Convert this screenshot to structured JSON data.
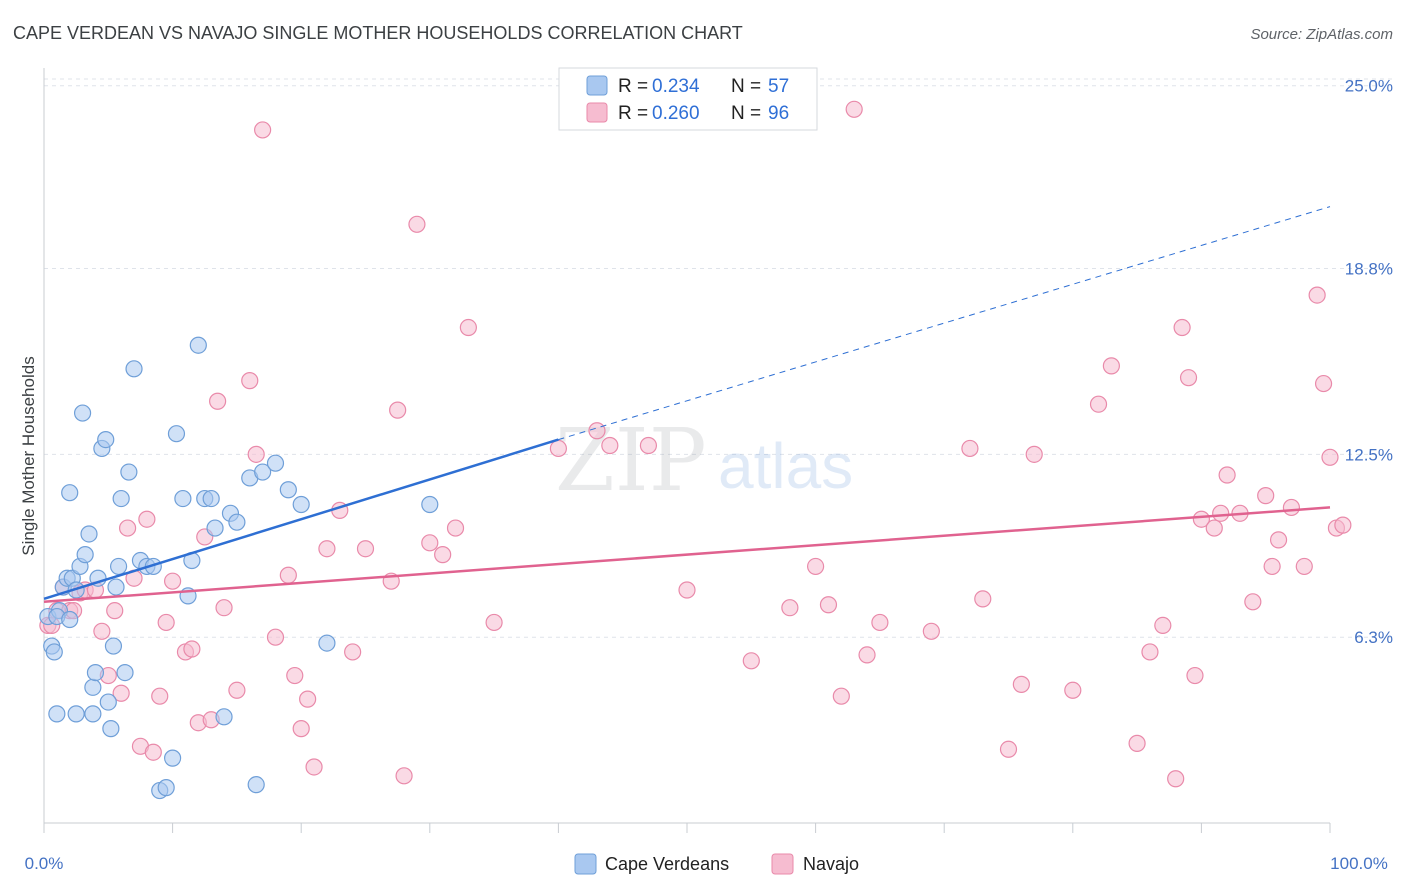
{
  "chart_data": {
    "type": "scatter",
    "title": "CAPE VERDEAN VS NAVAJO SINGLE MOTHER HOUSEHOLDS CORRELATION CHART",
    "source": "Source: ZipAtlas.com",
    "ylabel": "Single Mother Households",
    "xlabel": "",
    "xlim": [
      0,
      100
    ],
    "ylim": [
      0,
      25.6
    ],
    "x_tick_labels": {
      "left": "0.0%",
      "right": "100.0%"
    },
    "y_ticks": [
      {
        "value": 6.3,
        "label": "6.3%"
      },
      {
        "value": 12.5,
        "label": "12.5%"
      },
      {
        "value": 18.8,
        "label": "18.8%"
      },
      {
        "value": 25.0,
        "label": "25.0%"
      }
    ],
    "watermark": {
      "zip": "ZIP",
      "atlas": "atlas"
    },
    "legend": [
      {
        "name": "Cape Verdeans",
        "r_label": "R =",
        "r": "0.234",
        "n_label": "N =",
        "n": "57"
      },
      {
        "name": "Navajo",
        "r_label": "R =",
        "r": "0.260",
        "n_label": "N =",
        "n": "96"
      }
    ],
    "colors": {
      "cape_fill": "#a9c8f0",
      "cape_stroke": "#6f9fd8",
      "cape_line": "#2e6fd3",
      "navajo_fill": "#f6bcd0",
      "navajo_stroke": "#e98aaa",
      "navajo_line": "#e0628f",
      "grid": "#dfe3ea",
      "axis": "#c8ccd2"
    },
    "series": [
      {
        "name": "Cape Verdeans",
        "trend": {
          "x0": 0,
          "y0": 7.6,
          "x1": 40,
          "y1": 13.0,
          "dash_x1": 100,
          "dash_y1": 20.9
        },
        "points": [
          [
            0.3,
            7.0
          ],
          [
            0.6,
            6.0
          ],
          [
            0.8,
            5.8
          ],
          [
            1.2,
            7.2
          ],
          [
            1.0,
            7.0
          ],
          [
            1.5,
            8.0
          ],
          [
            1.8,
            8.3
          ],
          [
            2.0,
            11.2
          ],
          [
            2.2,
            8.3
          ],
          [
            2.5,
            7.9
          ],
          [
            2.0,
            6.9
          ],
          [
            2.8,
            8.7
          ],
          [
            3.0,
            13.9
          ],
          [
            3.2,
            9.1
          ],
          [
            3.5,
            9.8
          ],
          [
            3.8,
            4.6
          ],
          [
            4.0,
            5.1
          ],
          [
            3.8,
            3.7
          ],
          [
            1.0,
            3.7
          ],
          [
            2.5,
            3.7
          ],
          [
            4.2,
            8.3
          ],
          [
            4.5,
            12.7
          ],
          [
            4.8,
            13.0
          ],
          [
            5.0,
            4.1
          ],
          [
            5.2,
            3.2
          ],
          [
            5.4,
            6.0
          ],
          [
            5.6,
            8.0
          ],
          [
            5.8,
            8.7
          ],
          [
            6.0,
            11.0
          ],
          [
            6.3,
            5.1
          ],
          [
            6.6,
            11.9
          ],
          [
            7.0,
            15.4
          ],
          [
            7.5,
            8.9
          ],
          [
            8.0,
            8.7
          ],
          [
            8.5,
            8.7
          ],
          [
            9.0,
            1.1
          ],
          [
            9.5,
            1.2
          ],
          [
            10.0,
            2.2
          ],
          [
            10.3,
            13.2
          ],
          [
            10.8,
            11.0
          ],
          [
            11.2,
            7.7
          ],
          [
            11.5,
            8.9
          ],
          [
            12.0,
            16.2
          ],
          [
            12.5,
            11.0
          ],
          [
            13.0,
            11.0
          ],
          [
            13.3,
            10.0
          ],
          [
            14.0,
            3.6
          ],
          [
            14.5,
            10.5
          ],
          [
            15.0,
            10.2
          ],
          [
            16.0,
            11.7
          ],
          [
            16.5,
            1.3
          ],
          [
            17.0,
            11.9
          ],
          [
            18.0,
            12.2
          ],
          [
            19.0,
            11.3
          ],
          [
            20.0,
            10.8
          ],
          [
            22.0,
            6.1
          ],
          [
            30.0,
            10.8
          ]
        ]
      },
      {
        "name": "Navajo",
        "trend": {
          "x0": 0,
          "y0": 7.5,
          "x1": 100,
          "y1": 10.7
        },
        "points": [
          [
            0.3,
            6.7
          ],
          [
            0.6,
            6.7
          ],
          [
            1.0,
            7.2
          ],
          [
            1.5,
            8.0
          ],
          [
            2.0,
            7.2
          ],
          [
            2.3,
            7.2
          ],
          [
            2.8,
            7.8
          ],
          [
            3.2,
            7.9
          ],
          [
            4.0,
            7.9
          ],
          [
            4.5,
            6.5
          ],
          [
            5.0,
            5.0
          ],
          [
            5.5,
            7.2
          ],
          [
            6.0,
            4.4
          ],
          [
            6.5,
            10.0
          ],
          [
            7.0,
            8.3
          ],
          [
            7.5,
            2.6
          ],
          [
            8.0,
            10.3
          ],
          [
            8.5,
            2.4
          ],
          [
            9.0,
            4.3
          ],
          [
            9.5,
            6.8
          ],
          [
            10.0,
            8.2
          ],
          [
            11.0,
            5.8
          ],
          [
            11.5,
            5.9
          ],
          [
            12.0,
            3.4
          ],
          [
            12.5,
            9.7
          ],
          [
            13.0,
            3.5
          ],
          [
            13.5,
            14.3
          ],
          [
            14.0,
            7.3
          ],
          [
            15.0,
            4.5
          ],
          [
            16.0,
            15.0
          ],
          [
            16.5,
            12.5
          ],
          [
            17.0,
            23.5
          ],
          [
            18.0,
            6.3
          ],
          [
            19.0,
            8.4
          ],
          [
            19.5,
            5.0
          ],
          [
            20.0,
            3.2
          ],
          [
            20.5,
            4.2
          ],
          [
            21.0,
            1.9
          ],
          [
            22.0,
            9.3
          ],
          [
            23.0,
            10.6
          ],
          [
            24.0,
            5.8
          ],
          [
            25.0,
            9.3
          ],
          [
            27.0,
            8.2
          ],
          [
            27.5,
            14.0
          ],
          [
            28.0,
            1.6
          ],
          [
            29.0,
            20.3
          ],
          [
            30.0,
            9.5
          ],
          [
            31.0,
            9.1
          ],
          [
            32.0,
            10.0
          ],
          [
            33.0,
            16.8
          ],
          [
            35.0,
            6.8
          ],
          [
            40.0,
            12.7
          ],
          [
            43.0,
            13.3
          ],
          [
            44.0,
            12.8
          ],
          [
            47.0,
            12.8
          ],
          [
            50.0,
            7.9
          ],
          [
            55.0,
            5.5
          ],
          [
            58.0,
            7.3
          ],
          [
            60.0,
            8.7
          ],
          [
            61.0,
            7.4
          ],
          [
            62.0,
            4.3
          ],
          [
            63.0,
            24.2
          ],
          [
            64.0,
            5.7
          ],
          [
            65.0,
            6.8
          ],
          [
            69.0,
            6.5
          ],
          [
            72.0,
            12.7
          ],
          [
            73.0,
            7.6
          ],
          [
            75.0,
            2.5
          ],
          [
            76.0,
            4.7
          ],
          [
            77.0,
            12.5
          ],
          [
            80.0,
            4.5
          ],
          [
            82.0,
            14.2
          ],
          [
            83.0,
            15.5
          ],
          [
            85.0,
            2.7
          ],
          [
            86.0,
            5.8
          ],
          [
            87.0,
            6.7
          ],
          [
            88.0,
            1.5
          ],
          [
            88.5,
            16.8
          ],
          [
            89.0,
            15.1
          ],
          [
            89.5,
            5.0
          ],
          [
            90.0,
            10.3
          ],
          [
            91.0,
            10.0
          ],
          [
            91.5,
            10.5
          ],
          [
            92.0,
            11.8
          ],
          [
            93.0,
            10.5
          ],
          [
            94.0,
            7.5
          ],
          [
            95.0,
            11.1
          ],
          [
            95.5,
            8.7
          ],
          [
            96.0,
            9.6
          ],
          [
            97.0,
            10.7
          ],
          [
            98.0,
            8.7
          ],
          [
            99.0,
            17.9
          ],
          [
            99.5,
            14.9
          ],
          [
            100.0,
            12.4
          ],
          [
            100.5,
            10.0
          ],
          [
            101.0,
            10.1
          ]
        ]
      }
    ]
  }
}
